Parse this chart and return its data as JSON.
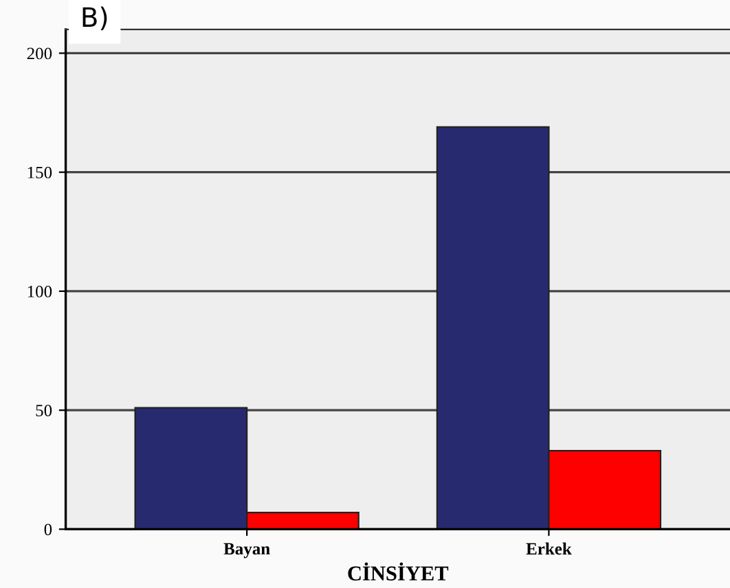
{
  "chart_data": {
    "type": "bar",
    "title": "B)",
    "xlabel": "CİNSİYET",
    "categories": [
      "Bayan",
      "Erkek"
    ],
    "series": [
      {
        "color": "#282a70",
        "values": [
          51,
          169
        ]
      },
      {
        "color": "#ff0000",
        "values": [
          7,
          33
        ]
      }
    ],
    "ylim": [
      0,
      210
    ],
    "yticks": [
      0,
      50,
      100,
      150,
      200
    ],
    "grid": "y"
  }
}
